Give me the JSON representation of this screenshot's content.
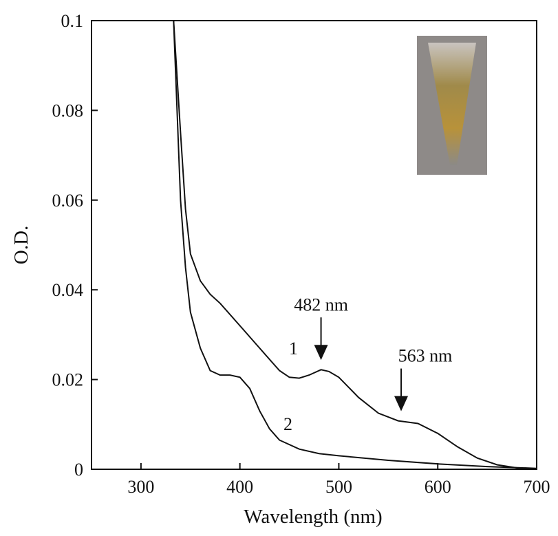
{
  "chart_data": {
    "type": "line",
    "x_label": "Wavelength (nm)",
    "y_label": "O.D.",
    "xlim": [
      250,
      700
    ],
    "ylim": [
      0,
      0.1
    ],
    "xticks": [
      300,
      400,
      500,
      600,
      700
    ],
    "yticks": [
      0,
      0.02,
      0.04,
      0.06,
      0.08,
      0.1
    ],
    "series": [
      {
        "name": "1",
        "color": "#111111",
        "x": [
          333,
          340,
          345,
          350,
          360,
          370,
          380,
          400,
          420,
          440,
          450,
          460,
          470,
          482,
          490,
          500,
          520,
          540,
          560,
          580,
          600,
          620,
          640,
          660,
          680,
          700
        ],
        "values": [
          0.1,
          0.075,
          0.058,
          0.048,
          0.042,
          0.039,
          0.037,
          0.032,
          0.027,
          0.022,
          0.0205,
          0.0203,
          0.021,
          0.0222,
          0.0218,
          0.0205,
          0.016,
          0.0125,
          0.0108,
          0.0102,
          0.008,
          0.005,
          0.0025,
          0.001,
          0.0003,
          0
        ]
      },
      {
        "name": "2",
        "color": "#111111",
        "x": [
          333,
          340,
          345,
          350,
          360,
          370,
          380,
          390,
          400,
          410,
          420,
          430,
          440,
          460,
          480,
          500,
          550,
          600,
          650,
          700
        ],
        "values": [
          0.1,
          0.06,
          0.045,
          0.035,
          0.027,
          0.022,
          0.021,
          0.021,
          0.0205,
          0.018,
          0.013,
          0.009,
          0.0065,
          0.0045,
          0.0035,
          0.003,
          0.002,
          0.0012,
          0.0006,
          0.0002
        ]
      }
    ],
    "annotations": [
      {
        "label": "482 nm",
        "x": 482,
        "y": 0.0222
      },
      {
        "label": "563 nm",
        "x": 563,
        "y": 0.0108
      }
    ]
  }
}
